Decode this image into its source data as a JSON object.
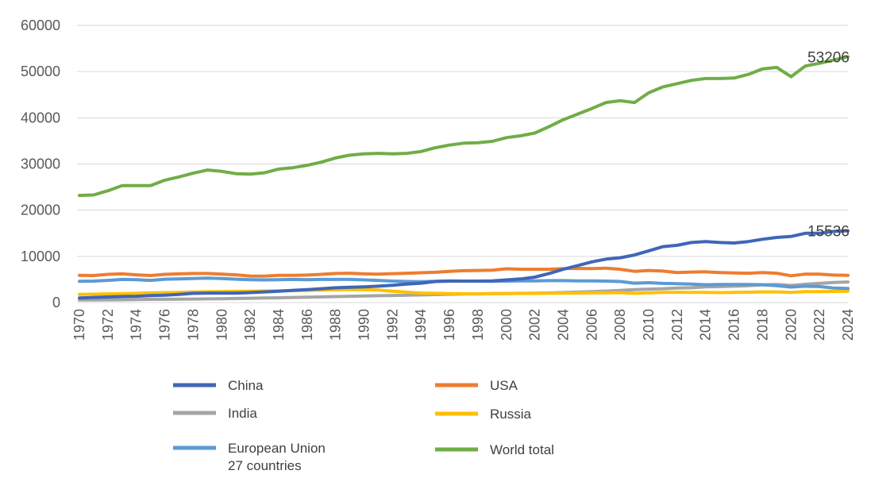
{
  "chart_data": {
    "type": "line",
    "title": "",
    "xlabel": "",
    "ylabel": "",
    "ylim": [
      0,
      60000
    ],
    "yticks": [
      "0",
      "10000",
      "20000",
      "30000",
      "40000",
      "50000",
      "60000"
    ],
    "grid": true,
    "legend_placement": "bottom",
    "x": [
      1970,
      1971,
      1972,
      1973,
      1974,
      1975,
      1976,
      1977,
      1978,
      1979,
      1980,
      1981,
      1982,
      1983,
      1984,
      1985,
      1986,
      1987,
      1988,
      1989,
      1990,
      1991,
      1992,
      1993,
      1994,
      1995,
      1996,
      1997,
      1998,
      1999,
      2000,
      2001,
      2002,
      2003,
      2004,
      2005,
      2006,
      2007,
      2008,
      2009,
      2010,
      2011,
      2012,
      2013,
      2014,
      2015,
      2016,
      2017,
      2018,
      2019,
      2020,
      2021,
      2022,
      2023,
      2024
    ],
    "xticks": [
      "1970",
      "1972",
      "1974",
      "1976",
      "1978",
      "1980",
      "1982",
      "1984",
      "1986",
      "1988",
      "1990",
      "1992",
      "1994",
      "1996",
      "1998",
      "2000",
      "2002",
      "2004",
      "2006",
      "2008",
      "2010",
      "2012",
      "2014",
      "2016",
      "2018",
      "2020",
      "2022",
      "2024"
    ],
    "series": [
      {
        "name": "China",
        "color": "#3F66B8",
        "values": [
          1000,
          1100,
          1200,
          1300,
          1350,
          1500,
          1600,
          1750,
          2000,
          2050,
          2050,
          2050,
          2150,
          2300,
          2450,
          2650,
          2800,
          3000,
          3200,
          3300,
          3400,
          3550,
          3750,
          4000,
          4200,
          4550,
          4650,
          4650,
          4650,
          4700,
          4900,
          5100,
          5500,
          6300,
          7200,
          8000,
          8800,
          9400,
          9700,
          10300,
          11200,
          12100,
          12400,
          13000,
          13200,
          13000,
          12900,
          13200,
          13700,
          14100,
          14300,
          15000,
          15000,
          15400,
          15536
        ]
      },
      {
        "name": "USA",
        "color": "#ED7D31",
        "values": [
          5900,
          5850,
          6100,
          6200,
          6000,
          5850,
          6100,
          6200,
          6300,
          6300,
          6150,
          6000,
          5750,
          5700,
          5900,
          5900,
          5950,
          6100,
          6300,
          6350,
          6200,
          6150,
          6250,
          6350,
          6450,
          6550,
          6750,
          6900,
          6950,
          7000,
          7300,
          7200,
          7200,
          7200,
          7350,
          7400,
          7350,
          7450,
          7200,
          6750,
          6950,
          6800,
          6500,
          6600,
          6650,
          6500,
          6400,
          6350,
          6500,
          6350,
          5800,
          6150,
          6150,
          5950,
          5900
        ]
      },
      {
        "name": "India",
        "color": "#A5A5A5",
        "values": [
          550,
          570,
          590,
          610,
          640,
          680,
          700,
          730,
          760,
          790,
          820,
          870,
          920,
          980,
          1030,
          1100,
          1150,
          1220,
          1290,
          1360,
          1420,
          1480,
          1530,
          1580,
          1650,
          1720,
          1790,
          1840,
          1870,
          1920,
          1960,
          1990,
          2020,
          2080,
          2160,
          2260,
          2360,
          2480,
          2620,
          2800,
          2900,
          3000,
          3150,
          3200,
          3400,
          3450,
          3550,
          3650,
          3850,
          3900,
          3700,
          3950,
          4150,
          4350,
          4450
        ]
      },
      {
        "name": "Russia",
        "color": "#FFC000",
        "values": [
          1750,
          1800,
          1870,
          1940,
          2000,
          2080,
          2150,
          2200,
          2270,
          2330,
          2380,
          2420,
          2460,
          2500,
          2540,
          2580,
          2640,
          2700,
          2760,
          2780,
          2800,
          2700,
          2450,
          2250,
          2050,
          2000,
          1950,
          1900,
          1850,
          1900,
          1950,
          1970,
          1980,
          2030,
          2050,
          2060,
          2100,
          2120,
          2150,
          2000,
          2100,
          2200,
          2220,
          2200,
          2200,
          2150,
          2180,
          2230,
          2300,
          2300,
          2200,
          2350,
          2350,
          2400,
          2450
        ]
      },
      {
        "name": "European Union 27 countries",
        "color": "#5B9BD5",
        "values": [
          4600,
          4650,
          4800,
          5000,
          4950,
          4800,
          5050,
          5100,
          5200,
          5300,
          5200,
          5050,
          4950,
          4900,
          4950,
          5000,
          4950,
          5000,
          5000,
          5000,
          4900,
          4800,
          4650,
          4550,
          4500,
          4600,
          4700,
          4650,
          4650,
          4600,
          4650,
          4700,
          4700,
          4750,
          4750,
          4700,
          4700,
          4650,
          4550,
          4200,
          4300,
          4150,
          4100,
          4000,
          3850,
          3900,
          3900,
          3900,
          3850,
          3650,
          3350,
          3550,
          3450,
          3150,
          3050
        ]
      },
      {
        "name": "World total",
        "color": "#70AD47",
        "values": [
          23200,
          23300,
          24200,
          25300,
          25300,
          25300,
          26500,
          27200,
          28000,
          28700,
          28400,
          27900,
          27800,
          28100,
          28900,
          29200,
          29700,
          30400,
          31300,
          31900,
          32200,
          32300,
          32200,
          32300,
          32700,
          33500,
          34100,
          34500,
          34600,
          34900,
          35700,
          36100,
          36700,
          38100,
          39600,
          40800,
          42000,
          43300,
          43700,
          43300,
          45400,
          46700,
          47400,
          48100,
          48500,
          48500,
          48600,
          49400,
          50600,
          50900,
          48900,
          51200,
          51800,
          52500,
          53206
        ]
      }
    ],
    "annotations": [
      {
        "series": "World total",
        "x": 2024,
        "text": "53206"
      },
      {
        "series": "China",
        "x": 2024,
        "text": "15536"
      }
    ],
    "legend": {
      "entries": [
        {
          "series": "China",
          "label": "China"
        },
        {
          "series": "USA",
          "label": "USA"
        },
        {
          "series": "India",
          "label": "India"
        },
        {
          "series": "Russia",
          "label": "Russia"
        },
        {
          "series": "European Union 27 countries",
          "label": "European Union",
          "label2": "27 countries"
        },
        {
          "series": "World total",
          "label": "World total"
        }
      ]
    }
  }
}
